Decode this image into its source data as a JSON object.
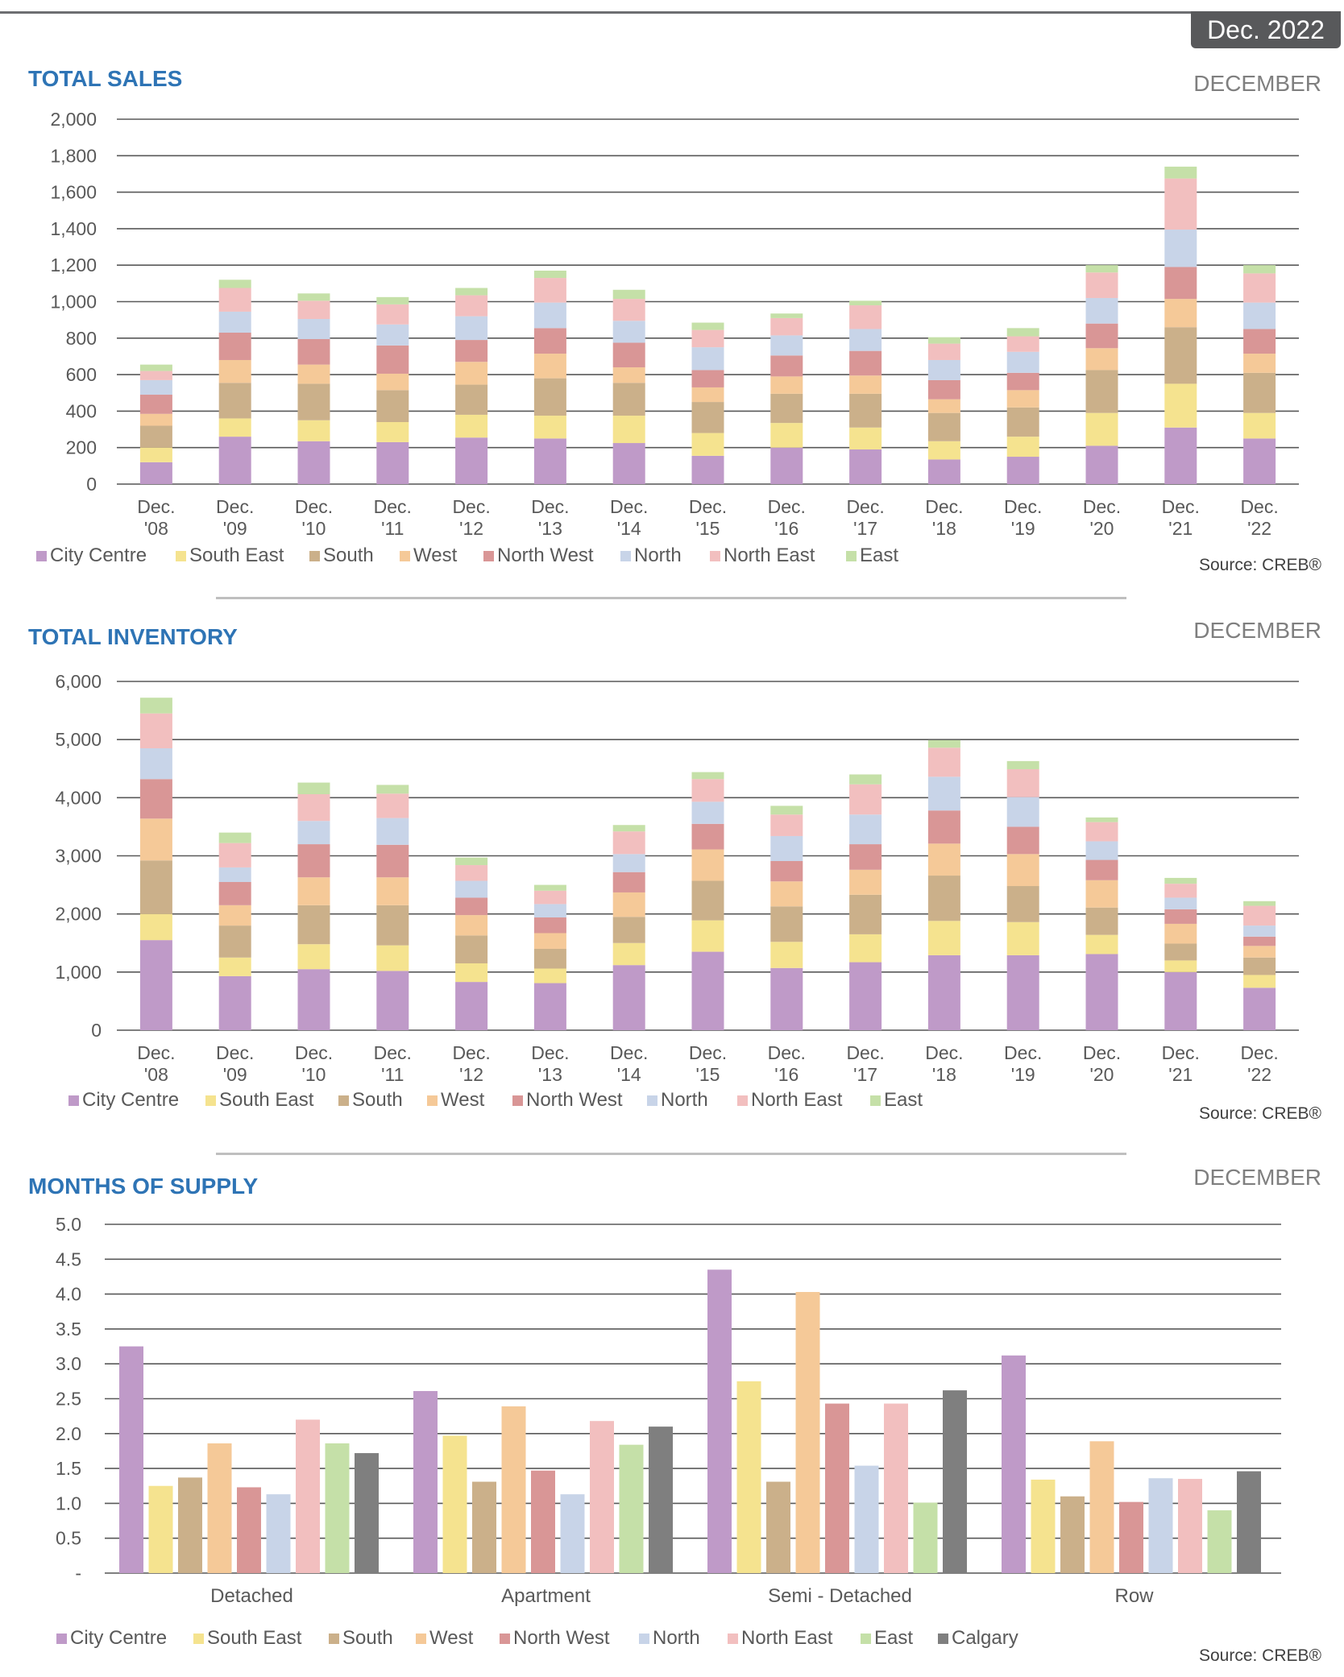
{
  "date_badge": "Dec. 2022",
  "source_label": "Source: CREB®",
  "colors": {
    "City Centre": "#bf9ac8",
    "South East": "#f5e38f",
    "South": "#cbb08a",
    "West": "#f5c998",
    "North West": "#d99696",
    "North": "#c8d4e8",
    "North East": "#f2bfbf",
    "East": "#c5e0a8",
    "Calgary": "#7f7f7f"
  },
  "sections": {
    "sales": {
      "title": "TOTAL SALES",
      "subtitle": "DECEMBER"
    },
    "inventory": {
      "title": "TOTAL INVENTORY",
      "subtitle": "DECEMBER"
    },
    "supply": {
      "title": "MONTHS OF SUPPLY",
      "subtitle": "DECEMBER"
    }
  },
  "chart_data": [
    {
      "type": "bar",
      "stacked": true,
      "title": "TOTAL SALES",
      "subtitle": "DECEMBER",
      "categories": [
        "Dec. '08",
        "Dec. '09",
        "Dec. '10",
        "Dec. '11",
        "Dec. '12",
        "Dec. '13",
        "Dec. '14",
        "Dec. '15",
        "Dec. '16",
        "Dec. '17",
        "Dec. '18",
        "Dec. '19",
        "Dec. '20",
        "Dec. '21",
        "Dec. '22"
      ],
      "ylim": [
        0,
        2000
      ],
      "yticks": [
        "0",
        "200",
        "400",
        "600",
        "800",
        "1,000",
        "1,200",
        "1,400",
        "1,600",
        "1,800",
        "2,000"
      ],
      "grid": true,
      "legend": "bottom",
      "series": [
        {
          "name": "City Centre",
          "values": [
            120,
            260,
            235,
            230,
            255,
            250,
            225,
            155,
            200,
            190,
            135,
            150,
            210,
            310,
            250
          ]
        },
        {
          "name": "South East",
          "values": [
            80,
            100,
            115,
            110,
            125,
            125,
            150,
            125,
            135,
            120,
            100,
            110,
            180,
            240,
            140
          ]
        },
        {
          "name": "South",
          "values": [
            120,
            195,
            200,
            175,
            165,
            205,
            180,
            170,
            160,
            185,
            155,
            160,
            235,
            310,
            220
          ]
        },
        {
          "name": "West",
          "values": [
            65,
            125,
            105,
            90,
            125,
            135,
            85,
            80,
            95,
            100,
            75,
            95,
            120,
            155,
            105
          ]
        },
        {
          "name": "North West",
          "values": [
            105,
            150,
            140,
            155,
            120,
            140,
            135,
            95,
            115,
            135,
            105,
            95,
            135,
            175,
            135
          ]
        },
        {
          "name": "North",
          "values": [
            80,
            115,
            110,
            115,
            130,
            140,
            120,
            125,
            110,
            120,
            110,
            115,
            140,
            205,
            145
          ]
        },
        {
          "name": "North East",
          "values": [
            50,
            130,
            100,
            110,
            115,
            135,
            120,
            95,
            95,
            130,
            90,
            85,
            140,
            280,
            160
          ]
        },
        {
          "name": "East",
          "values": [
            35,
            45,
            40,
            40,
            40,
            40,
            50,
            40,
            25,
            25,
            35,
            45,
            40,
            65,
            45
          ]
        }
      ]
    },
    {
      "type": "bar",
      "stacked": true,
      "title": "TOTAL INVENTORY",
      "subtitle": "DECEMBER",
      "categories": [
        "Dec. '08",
        "Dec. '09",
        "Dec. '10",
        "Dec. '11",
        "Dec. '12",
        "Dec. '13",
        "Dec. '14",
        "Dec. '15",
        "Dec. '16",
        "Dec. '17",
        "Dec. '18",
        "Dec. '19",
        "Dec. '20",
        "Dec. '21",
        "Dec. '22"
      ],
      "ylim": [
        0,
        6000
      ],
      "yticks": [
        "0",
        "1,000",
        "2,000",
        "3,000",
        "4,000",
        "5,000",
        "6,000"
      ],
      "grid": true,
      "legend": "bottom",
      "series": [
        {
          "name": "City Centre",
          "values": [
            1550,
            930,
            1050,
            1020,
            830,
            810,
            1120,
            1350,
            1070,
            1170,
            1290,
            1290,
            1310,
            1000,
            730
          ]
        },
        {
          "name": "South East",
          "values": [
            450,
            320,
            430,
            440,
            320,
            250,
            380,
            540,
            450,
            480,
            590,
            570,
            330,
            200,
            220
          ]
        },
        {
          "name": "South",
          "values": [
            920,
            550,
            670,
            690,
            480,
            340,
            450,
            680,
            610,
            680,
            780,
            620,
            470,
            290,
            300
          ]
        },
        {
          "name": "West",
          "values": [
            720,
            350,
            480,
            480,
            350,
            270,
            420,
            540,
            430,
            430,
            550,
            550,
            470,
            340,
            200
          ]
        },
        {
          "name": "North West",
          "values": [
            680,
            400,
            570,
            560,
            300,
            270,
            350,
            440,
            350,
            440,
            570,
            470,
            350,
            250,
            160
          ]
        },
        {
          "name": "North",
          "values": [
            530,
            250,
            400,
            460,
            290,
            230,
            310,
            380,
            430,
            510,
            580,
            510,
            320,
            200,
            190
          ]
        },
        {
          "name": "North East",
          "values": [
            600,
            420,
            460,
            420,
            270,
            230,
            390,
            390,
            370,
            520,
            500,
            480,
            330,
            240,
            340
          ]
        },
        {
          "name": "East",
          "values": [
            270,
            180,
            200,
            150,
            130,
            100,
            110,
            120,
            150,
            170,
            130,
            140,
            80,
            100,
            80
          ]
        }
      ]
    },
    {
      "type": "bar",
      "title": "MONTHS OF SUPPLY",
      "subtitle": "DECEMBER",
      "categories": [
        "Detached",
        "Apartment",
        "Semi - Detached",
        "Row"
      ],
      "ylim": [
        0,
        5
      ],
      "yticks": [
        "-",
        "0.5",
        "1.0",
        "1.5",
        "2.0",
        "2.5",
        "3.0",
        "3.5",
        "4.0",
        "4.5",
        "5.0"
      ],
      "grid": true,
      "legend": "bottom",
      "series": [
        {
          "name": "City Centre",
          "values": [
            3.25,
            2.61,
            4.35,
            3.12
          ]
        },
        {
          "name": "South East",
          "values": [
            1.25,
            1.97,
            2.75,
            1.34
          ]
        },
        {
          "name": "South",
          "values": [
            1.37,
            1.31,
            1.31,
            1.1
          ]
        },
        {
          "name": "West",
          "values": [
            1.86,
            2.39,
            4.03,
            1.89
          ]
        },
        {
          "name": "North West",
          "values": [
            1.23,
            1.47,
            2.43,
            1.02
          ]
        },
        {
          "name": "North",
          "values": [
            1.13,
            1.13,
            1.54,
            1.36
          ]
        },
        {
          "name": "North East",
          "values": [
            2.2,
            2.18,
            2.43,
            1.35
          ]
        },
        {
          "name": "East",
          "values": [
            1.86,
            1.84,
            1.01,
            0.9
          ]
        },
        {
          "name": "Calgary",
          "values": [
            1.72,
            2.1,
            2.62,
            1.46
          ]
        }
      ]
    }
  ]
}
